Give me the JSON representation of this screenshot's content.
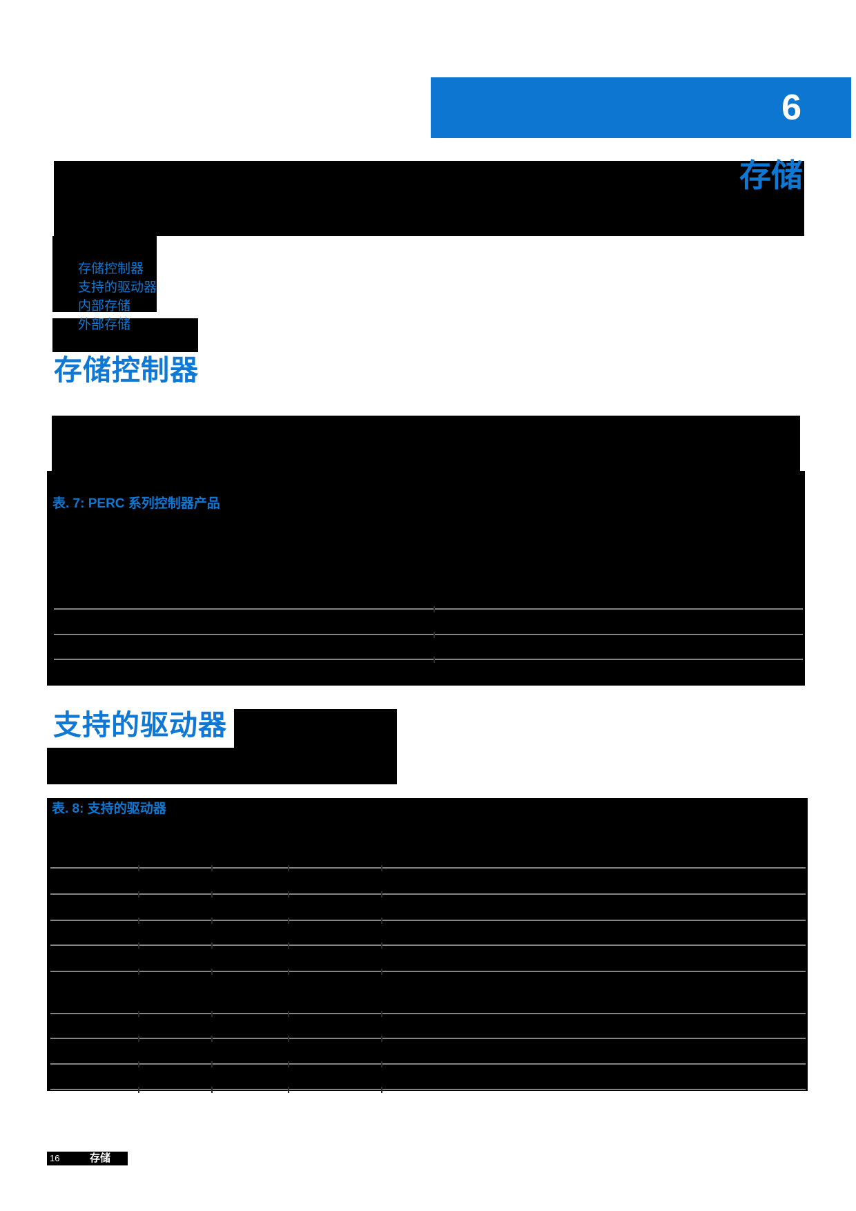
{
  "chapter": {
    "number": "6",
    "title": "存储"
  },
  "toc": {
    "links": [
      "存储控制器",
      "支持的驱动器",
      "内部存储",
      "外部存储"
    ]
  },
  "sections": {
    "storage_controllers": {
      "heading": "存储控制器",
      "table_caption": "表. 7: PERC 系列控制器产品"
    },
    "supported_drives": {
      "heading": "支持的驱动器",
      "table_caption": "表. 8: 支持的驱动器"
    }
  },
  "footer": {
    "page_number": "16",
    "chapter_label": "存储"
  },
  "colors": {
    "accent_blue": "#0d76d0",
    "link_blue": "#0e78d4",
    "table_line_gray": "#858585",
    "redaction_black": "#000000"
  }
}
